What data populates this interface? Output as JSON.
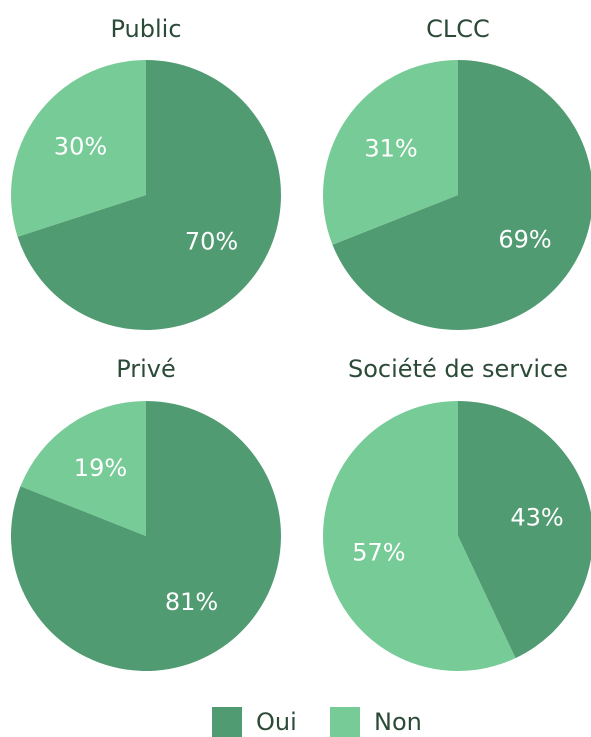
{
  "chart_data": [
    {
      "type": "pie",
      "title": "Public",
      "categories": [
        "Oui",
        "Non"
      ],
      "values": [
        70,
        30
      ],
      "value_labels": [
        "70%",
        "30%"
      ],
      "colors": [
        "#519b72",
        "#77cb97"
      ]
    },
    {
      "type": "pie",
      "title": "CLCC",
      "categories": [
        "Oui",
        "Non"
      ],
      "values": [
        69,
        31
      ],
      "value_labels": [
        "69%",
        "31%"
      ],
      "colors": [
        "#519b72",
        "#77cb97"
      ]
    },
    {
      "type": "pie",
      "title": "Privé",
      "categories": [
        "Oui",
        "Non"
      ],
      "values": [
        81,
        19
      ],
      "value_labels": [
        "81%",
        "19%"
      ],
      "colors": [
        "#519b72",
        "#77cb97"
      ]
    },
    {
      "type": "pie",
      "title": "Société de service",
      "categories": [
        "Oui",
        "Non"
      ],
      "values": [
        43,
        57
      ],
      "value_labels": [
        "43%",
        "57%"
      ],
      "colors": [
        "#519b72",
        "#77cb97"
      ]
    }
  ]
}
